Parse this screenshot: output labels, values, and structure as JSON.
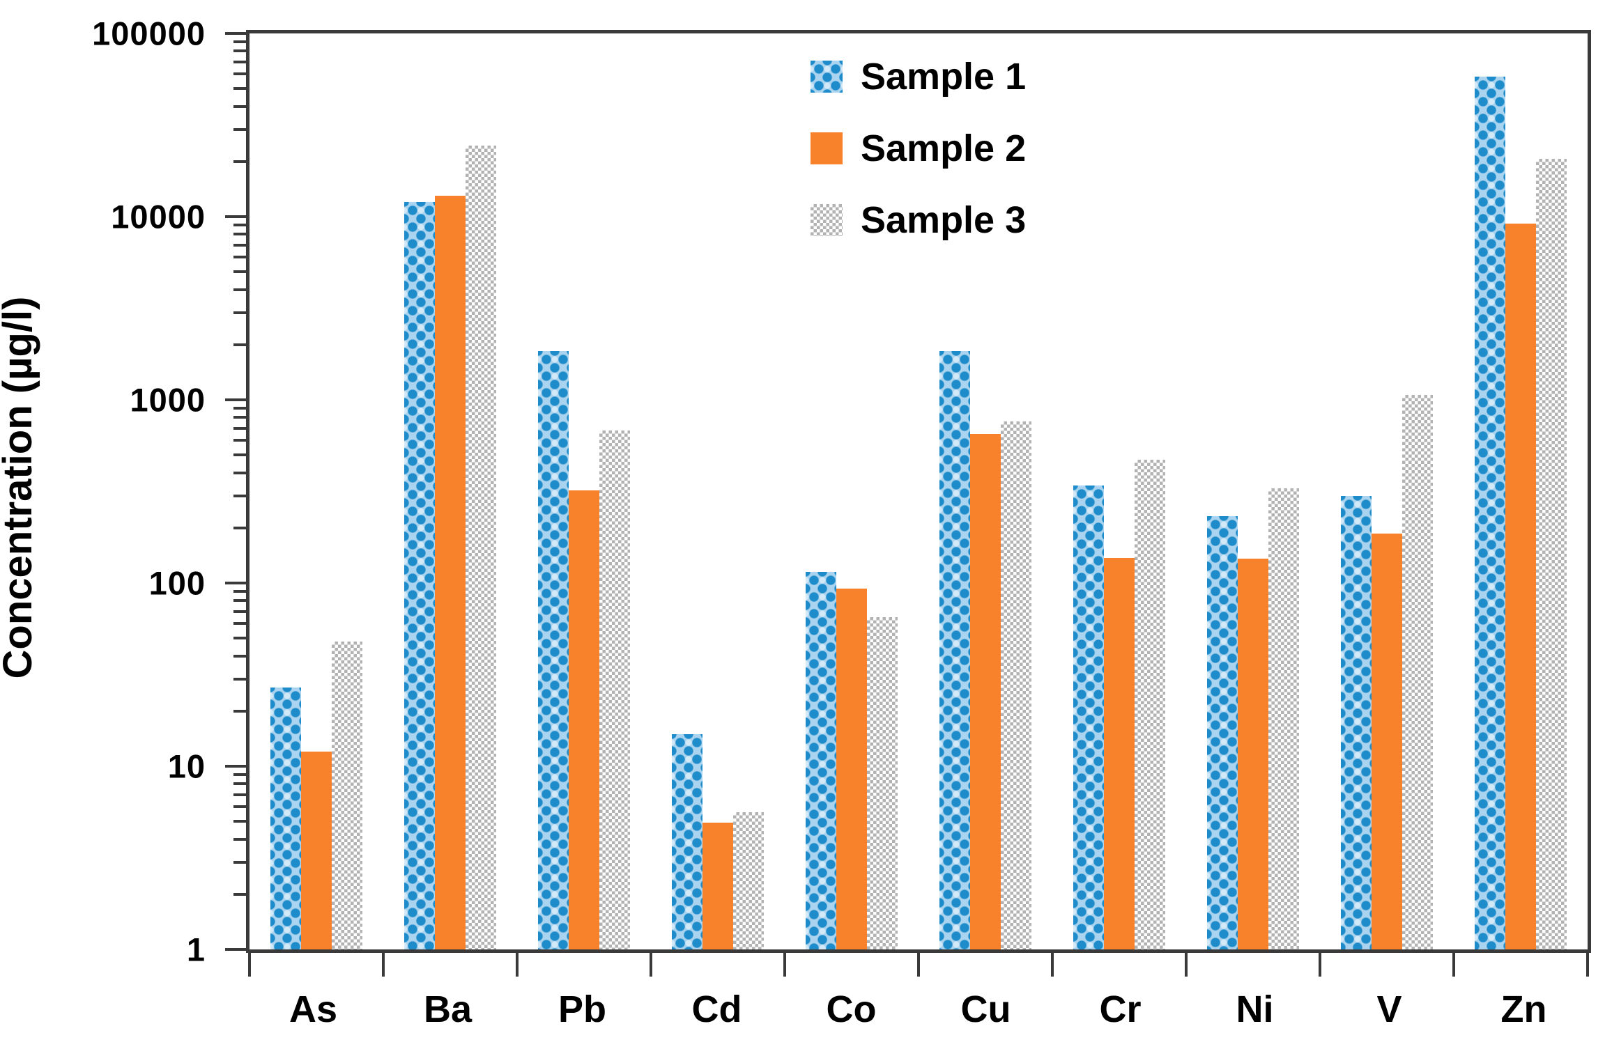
{
  "chart_data": {
    "type": "bar",
    "title": "",
    "xlabel": "",
    "ylabel": "Concentration (µg/l)",
    "scale": "log",
    "ylim": [
      1,
      100000
    ],
    "y_ticks": [
      1,
      10,
      100,
      1000,
      10000,
      100000
    ],
    "grid": false,
    "legend_position": "top-center-inside",
    "categories": [
      "As",
      "Ba",
      "Pb",
      "Cd",
      "Co",
      "Cu",
      "Cr",
      "Ni",
      "V",
      "Zn"
    ],
    "series": [
      {
        "name": "Sample 1",
        "pattern": "blue-spheres",
        "color": "#1e8ccb",
        "values": [
          27,
          12000,
          1850,
          15,
          115,
          1850,
          340,
          232,
          300,
          58000
        ]
      },
      {
        "name": "Sample 2",
        "pattern": "solid",
        "color": "#f8822c",
        "values": [
          12,
          13000,
          320,
          4.9,
          93,
          650,
          137,
          136,
          187,
          9200
        ]
      },
      {
        "name": "Sample 3",
        "pattern": "gray-checker",
        "color": "#b2b2b2",
        "values": [
          48,
          24500,
          680,
          5.6,
          65,
          760,
          470,
          330,
          1060,
          20600
        ]
      }
    ]
  },
  "legend": {
    "items": [
      {
        "label": "Sample 1"
      },
      {
        "label": "Sample 2"
      },
      {
        "label": "Sample 3"
      }
    ]
  }
}
